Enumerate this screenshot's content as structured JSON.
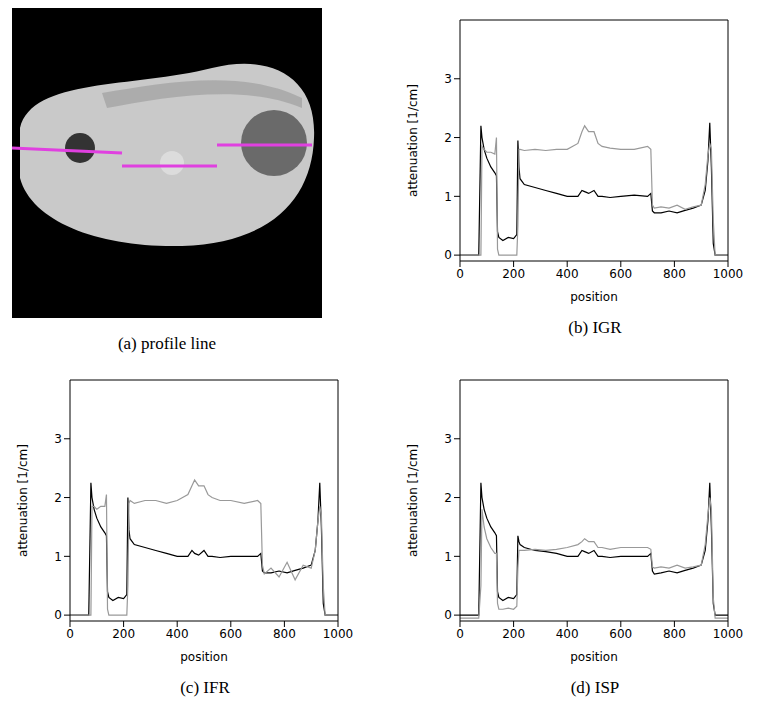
{
  "image": {
    "caption": "(a) profile line"
  },
  "chart_data": [
    {
      "type": "line",
      "caption": "(b) IGR",
      "x_label": "position",
      "y_label": "attenuation [1/cm]",
      "xlim": [
        0,
        1000
      ],
      "ylim": [
        -0.1,
        4
      ],
      "xticks": [
        0,
        200,
        400,
        600,
        800,
        1000
      ],
      "yticks": [
        0,
        1,
        2,
        3
      ],
      "x": [
        0,
        60,
        70,
        78,
        82,
        90,
        100,
        115,
        130,
        136,
        140,
        145,
        160,
        180,
        200,
        212,
        216,
        220,
        224,
        240,
        280,
        320,
        360,
        400,
        440,
        455,
        465,
        480,
        500,
        515,
        530,
        560,
        600,
        650,
        700,
        712,
        718,
        725,
        750,
        780,
        810,
        840,
        870,
        900,
        915,
        925,
        932,
        938,
        945,
        952,
        1000
      ],
      "series": [
        {
          "color": "#000000",
          "values": [
            0,
            0,
            0,
            2.2,
            2.0,
            1.8,
            1.65,
            1.5,
            1.4,
            1.35,
            0.4,
            0.3,
            0.25,
            0.3,
            0.28,
            0.35,
            1.95,
            1.5,
            1.3,
            1.2,
            1.15,
            1.1,
            1.05,
            1.0,
            1.0,
            1.1,
            1.08,
            1.05,
            1.1,
            1.0,
            1.0,
            0.98,
            1.0,
            1.02,
            1.0,
            1.05,
            0.75,
            0.72,
            0.72,
            0.75,
            0.72,
            0.76,
            0.8,
            0.85,
            1.1,
            1.6,
            2.25,
            1.5,
            0.2,
            0,
            0
          ]
        },
        {
          "color": "#999999",
          "values": [
            0,
            0,
            0,
            0,
            1.85,
            1.8,
            1.75,
            1.75,
            1.72,
            2.0,
            0.1,
            0,
            0,
            0,
            0,
            0,
            0.5,
            1.8,
            1.8,
            1.78,
            1.8,
            1.78,
            1.8,
            1.8,
            1.9,
            2.1,
            2.2,
            2.1,
            2.1,
            1.9,
            1.85,
            1.82,
            1.8,
            1.8,
            1.85,
            1.8,
            0.85,
            0.8,
            0.82,
            0.8,
            0.85,
            0.78,
            0.82,
            0.85,
            1.2,
            1.7,
            1.9,
            1.8,
            0.6,
            0,
            0
          ]
        }
      ]
    },
    {
      "type": "line",
      "caption": "(c) IFR",
      "x_label": "position",
      "y_label": "attenuation [1/cm]",
      "xlim": [
        0,
        1000
      ],
      "ylim": [
        -0.1,
        4
      ],
      "xticks": [
        0,
        200,
        400,
        600,
        800,
        1000
      ],
      "yticks": [
        0,
        1,
        2,
        3
      ],
      "x": [
        0,
        60,
        70,
        78,
        82,
        90,
        100,
        115,
        130,
        136,
        140,
        145,
        160,
        180,
        200,
        212,
        216,
        220,
        224,
        240,
        280,
        320,
        360,
        400,
        440,
        455,
        465,
        480,
        500,
        515,
        530,
        560,
        600,
        650,
        700,
        712,
        718,
        725,
        750,
        780,
        810,
        840,
        870,
        900,
        915,
        925,
        932,
        938,
        945,
        952,
        1000
      ],
      "series": [
        {
          "color": "#000000",
          "values": [
            0,
            0,
            0,
            2.25,
            2.0,
            1.8,
            1.65,
            1.5,
            1.4,
            1.35,
            0.4,
            0.3,
            0.25,
            0.3,
            0.28,
            0.35,
            2.0,
            1.45,
            1.3,
            1.2,
            1.15,
            1.1,
            1.05,
            1.0,
            1.0,
            1.1,
            1.05,
            1.02,
            1.1,
            1.0,
            1.0,
            0.98,
            1.0,
            1.0,
            1.0,
            1.05,
            0.75,
            0.72,
            0.72,
            0.75,
            0.72,
            0.76,
            0.8,
            0.85,
            1.1,
            1.6,
            2.25,
            1.5,
            0.2,
            0,
            0
          ]
        },
        {
          "color": "#999999",
          "values": [
            0,
            0,
            0,
            0,
            1.85,
            1.85,
            1.8,
            1.85,
            1.85,
            2.05,
            0.1,
            0,
            0,
            0,
            0,
            0,
            0.5,
            1.9,
            1.95,
            1.9,
            1.95,
            1.95,
            1.9,
            1.95,
            2.05,
            2.2,
            2.3,
            2.2,
            2.2,
            2.05,
            2.0,
            1.95,
            1.95,
            1.9,
            1.95,
            1.9,
            0.85,
            0.7,
            0.8,
            0.65,
            0.9,
            0.6,
            0.85,
            0.8,
            1.1,
            1.6,
            1.85,
            1.7,
            0.5,
            0,
            0
          ]
        }
      ]
    },
    {
      "type": "line",
      "caption": "(d) ISP",
      "x_label": "position",
      "y_label": "attenuation [1/cm]",
      "xlim": [
        0,
        1000
      ],
      "ylim": [
        -0.1,
        4
      ],
      "xticks": [
        0,
        200,
        400,
        600,
        800,
        1000
      ],
      "yticks": [
        0,
        1,
        2,
        3
      ],
      "x": [
        0,
        60,
        70,
        78,
        82,
        90,
        100,
        115,
        130,
        136,
        140,
        145,
        160,
        180,
        200,
        212,
        216,
        220,
        224,
        240,
        280,
        320,
        360,
        400,
        440,
        455,
        465,
        480,
        500,
        515,
        530,
        560,
        600,
        650,
        700,
        712,
        718,
        725,
        750,
        780,
        810,
        840,
        870,
        900,
        915,
        925,
        932,
        938,
        945,
        952,
        1000
      ],
      "series": [
        {
          "color": "#000000",
          "values": [
            0,
            0,
            0,
            2.25,
            2.0,
            1.8,
            1.65,
            1.5,
            1.4,
            1.35,
            0.4,
            0.3,
            0.25,
            0.3,
            0.28,
            0.35,
            1.35,
            1.25,
            1.2,
            1.15,
            1.1,
            1.08,
            1.05,
            1.0,
            1.0,
            1.1,
            1.08,
            1.05,
            1.1,
            1.0,
            1.0,
            0.98,
            1.0,
            1.0,
            1.0,
            1.05,
            0.75,
            0.7,
            0.72,
            0.75,
            0.72,
            0.76,
            0.8,
            0.85,
            1.1,
            1.6,
            2.25,
            1.5,
            0.2,
            0,
            0
          ]
        },
        {
          "color": "#999999",
          "values": [
            -0.05,
            -0.05,
            -0.05,
            0.5,
            1.8,
            1.5,
            1.3,
            1.15,
            1.05,
            1.05,
            0.2,
            0.1,
            0.1,
            0.12,
            0.1,
            0.15,
            0.8,
            1.1,
            1.1,
            1.1,
            1.12,
            1.1,
            1.12,
            1.15,
            1.2,
            1.25,
            1.3,
            1.25,
            1.25,
            1.15,
            1.15,
            1.12,
            1.15,
            1.15,
            1.15,
            1.12,
            0.82,
            0.8,
            0.82,
            0.8,
            0.85,
            0.8,
            0.82,
            0.85,
            1.2,
            1.7,
            2.0,
            1.8,
            0.3,
            -0.05,
            -0.05
          ]
        }
      ]
    }
  ]
}
